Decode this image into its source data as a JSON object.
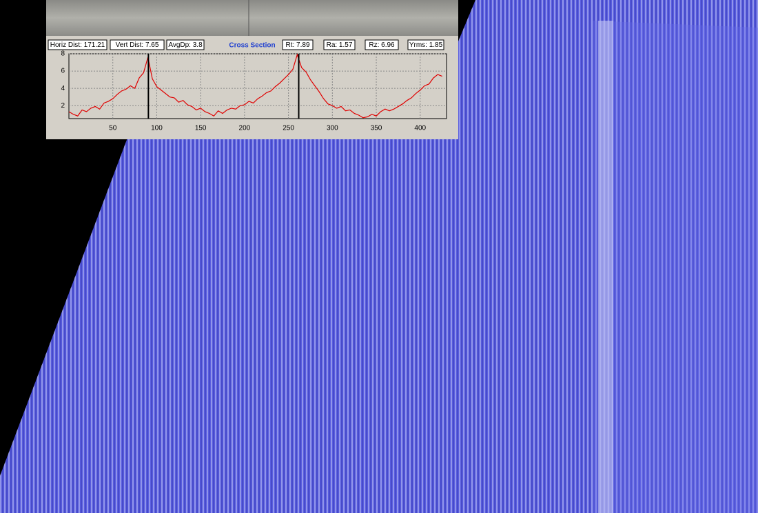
{
  "stats": [
    "Horiz Dist: 171.21",
    "Vert Dist: 7.65",
    "AvgDp: 3.8",
    "Rt: 7.89",
    "Ra: 1.57",
    "Rz: 6.96",
    "Yrms: 1.85"
  ],
  "chart_data": {
    "type": "line",
    "title": "Cross Section",
    "x": [
      0,
      5,
      10,
      15,
      20,
      25,
      30,
      35,
      40,
      45,
      50,
      55,
      60,
      65,
      70,
      75,
      80,
      85,
      90,
      95,
      100,
      105,
      110,
      115,
      120,
      125,
      130,
      135,
      140,
      145,
      150,
      155,
      160,
      165,
      170,
      175,
      180,
      185,
      190,
      195,
      200,
      205,
      210,
      215,
      220,
      225,
      230,
      235,
      240,
      245,
      250,
      255,
      260,
      265,
      270,
      275,
      280,
      285,
      290,
      295,
      300,
      305,
      310,
      315,
      320,
      325,
      330,
      335,
      340,
      345,
      350,
      355,
      360,
      365,
      370,
      375,
      380,
      385,
      390,
      395,
      400,
      405,
      410,
      415,
      420,
      425
    ],
    "series": [
      {
        "color": "#e00000",
        "values": [
          1.3,
          1.0,
          0.8,
          1.5,
          1.3,
          1.7,
          1.9,
          1.6,
          2.3,
          2.5,
          2.8,
          3.3,
          3.7,
          3.9,
          4.3,
          4.0,
          5.2,
          5.8,
          7.6,
          5.1,
          4.2,
          3.8,
          3.4,
          3.0,
          2.9,
          2.4,
          2.6,
          2.1,
          1.9,
          1.5,
          1.7,
          1.3,
          1.1,
          0.8,
          1.4,
          1.1,
          1.5,
          1.7,
          1.6,
          2.0,
          2.1,
          2.5,
          2.3,
          2.8,
          3.1,
          3.5,
          3.7,
          4.2,
          4.6,
          5.1,
          5.6,
          6.2,
          7.9,
          6.4,
          5.9,
          5.0,
          4.3,
          3.6,
          2.8,
          2.2,
          2.0,
          1.7,
          1.9,
          1.4,
          1.5,
          1.1,
          0.9,
          0.6,
          0.7,
          1.0,
          0.8,
          1.3,
          1.6,
          1.4,
          1.6,
          1.9,
          2.2,
          2.6,
          2.9,
          3.4,
          3.8,
          4.3,
          4.5,
          5.2,
          5.6,
          5.4
        ]
      }
    ],
    "cursors": [
      90.5,
      261.7
    ],
    "xlim": [
      0,
      430
    ],
    "ylim": [
      0.5,
      8
    ],
    "xticks": [
      50,
      100,
      150,
      200,
      250,
      300,
      350,
      400
    ],
    "yticks": [
      2,
      4,
      6,
      8
    ],
    "grid": true
  }
}
